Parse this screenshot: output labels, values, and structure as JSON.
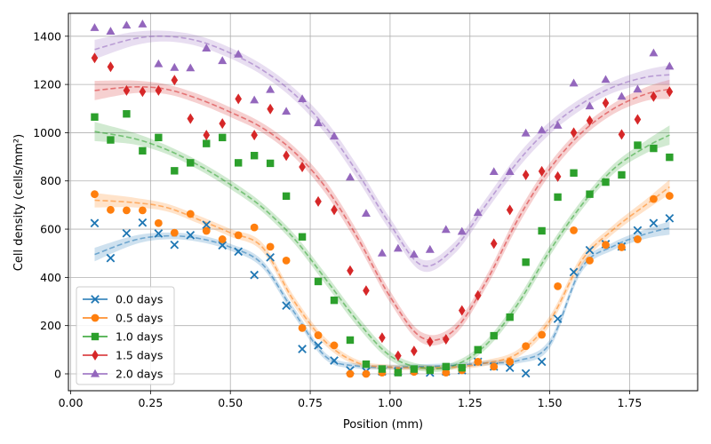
{
  "chart_data": {
    "type": "scatter",
    "title": "",
    "xlabel": "Position (mm)",
    "ylabel": "Cell density (cells/mm²)",
    "xlim": [
      -0.007,
      1.963
    ],
    "ylim": [
      -70,
      1495
    ],
    "xticks": [
      0,
      0.25,
      0.5,
      0.75,
      1.0,
      1.25,
      1.5,
      1.75
    ],
    "xtick_labels": [
      "0.00",
      "0.25",
      "0.50",
      "0.75",
      "1.00",
      "1.25",
      "1.50",
      "1.75"
    ],
    "yticks": [
      0,
      200,
      400,
      600,
      800,
      1000,
      1200,
      1400
    ],
    "ytick_labels": [
      "0",
      "200",
      "400",
      "600",
      "800",
      "1000",
      "1200",
      "1400"
    ],
    "grid": true,
    "legend_position": "lower-left",
    "x": [
      0.075,
      0.125,
      0.175,
      0.225,
      0.275,
      0.325,
      0.375,
      0.425,
      0.475,
      0.525,
      0.575,
      0.625,
      0.675,
      0.725,
      0.775,
      0.825,
      0.875,
      0.925,
      0.975,
      1.025,
      1.075,
      1.125,
      1.175,
      1.225,
      1.275,
      1.325,
      1.375,
      1.425,
      1.475,
      1.525,
      1.575,
      1.625,
      1.675,
      1.725,
      1.775,
      1.825,
      1.875
    ],
    "series": [
      {
        "name": "0.0 days",
        "color": "#1f77b4",
        "marker": "x",
        "values": [
          625,
          480,
          583,
          627,
          582,
          535,
          575,
          618,
          533,
          507,
          410,
          483,
          283,
          103,
          118,
          55,
          15,
          10,
          10,
          10,
          15,
          5,
          10,
          15,
          50,
          30,
          25,
          2,
          50,
          228,
          422,
          513,
          538,
          528,
          595,
          625,
          645
        ],
        "fit_x": [
          0.075,
          0.2,
          0.3,
          0.4,
          0.5,
          0.6,
          0.7,
          0.8,
          0.9,
          1.0,
          1.1,
          1.2,
          1.3,
          1.4,
          1.5,
          1.6,
          1.7,
          1.8,
          1.875
        ],
        "fit": [
          495,
          555,
          572,
          562,
          525,
          455,
          255,
          70,
          32,
          28,
          30,
          35,
          45,
          55,
          125,
          440,
          530,
          580,
          605
        ],
        "band": [
          28,
          18,
          14,
          14,
          14,
          16,
          18,
          14,
          10,
          10,
          10,
          10,
          10,
          12,
          18,
          18,
          16,
          20,
          28
        ]
      },
      {
        "name": "0.5 days",
        "color": "#ff7f0e",
        "marker": "o",
        "values": [
          745,
          680,
          678,
          678,
          625,
          585,
          663,
          593,
          558,
          575,
          607,
          527,
          470,
          190,
          160,
          118,
          0,
          0,
          5,
          8,
          8,
          15,
          5,
          15,
          50,
          30,
          50,
          115,
          162,
          363,
          595,
          470,
          535,
          525,
          558,
          725,
          738
        ],
        "fit_x": [
          0.075,
          0.2,
          0.3,
          0.4,
          0.5,
          0.6,
          0.7,
          0.8,
          0.9,
          1.0,
          1.1,
          1.2,
          1.3,
          1.4,
          1.5,
          1.6,
          1.7,
          1.8,
          1.875
        ],
        "fit": [
          720,
          710,
          690,
          640,
          585,
          525,
          300,
          130,
          45,
          28,
          25,
          28,
          45,
          85,
          220,
          470,
          600,
          700,
          775
        ],
        "band": [
          30,
          20,
          16,
          16,
          16,
          18,
          20,
          16,
          12,
          10,
          10,
          10,
          12,
          16,
          20,
          20,
          18,
          22,
          30
        ]
      },
      {
        "name": "1.0 days",
        "color": "#2ca02c",
        "marker": "s",
        "values": [
          1065,
          970,
          1078,
          925,
          980,
          842,
          875,
          955,
          980,
          875,
          905,
          873,
          737,
          568,
          383,
          305,
          140,
          40,
          20,
          5,
          20,
          15,
          30,
          25,
          100,
          158,
          235,
          463,
          593,
          733,
          833,
          745,
          795,
          825,
          948,
          935,
          898
        ],
        "fit_x": [
          0.075,
          0.2,
          0.3,
          0.4,
          0.5,
          0.6,
          0.7,
          0.8,
          0.9,
          1.0,
          1.1,
          1.2,
          1.3,
          1.4,
          1.5,
          1.6,
          1.7,
          1.8,
          1.875
        ],
        "fit": [
          1005,
          975,
          930,
          865,
          785,
          690,
          560,
          390,
          215,
          75,
          25,
          35,
          120,
          290,
          510,
          700,
          850,
          940,
          990
        ],
        "band": [
          40,
          24,
          18,
          18,
          18,
          18,
          20,
          22,
          22,
          18,
          14,
          14,
          18,
          22,
          22,
          20,
          20,
          26,
          40
        ]
      },
      {
        "name": "1.5 days",
        "color": "#d62728",
        "marker": "d",
        "values": [
          1310,
          1273,
          1175,
          1170,
          1175,
          1218,
          1058,
          990,
          1038,
          1140,
          990,
          1098,
          905,
          858,
          715,
          680,
          428,
          345,
          150,
          75,
          95,
          133,
          143,
          263,
          325,
          540,
          680,
          825,
          840,
          818,
          1000,
          1050,
          1123,
          993,
          1055,
          1150,
          1170
        ],
        "fit_x": [
          0.075,
          0.2,
          0.3,
          0.4,
          0.5,
          0.6,
          0.7,
          0.8,
          0.9,
          1.0,
          1.1,
          1.2,
          1.3,
          1.4,
          1.5,
          1.6,
          1.7,
          1.8,
          1.875
        ],
        "fit": [
          1175,
          1190,
          1180,
          1140,
          1085,
          1020,
          920,
          770,
          560,
          320,
          150,
          180,
          380,
          640,
          850,
          1000,
          1100,
          1160,
          1180
        ],
        "band": [
          40,
          26,
          20,
          20,
          20,
          20,
          22,
          26,
          26,
          24,
          22,
          22,
          24,
          26,
          24,
          22,
          22,
          28,
          40
        ]
      },
      {
        "name": "2.0 days",
        "color": "#9467bd",
        "marker": "^",
        "values": [
          1435,
          1420,
          1445,
          1450,
          1285,
          1270,
          1268,
          1350,
          1298,
          1325,
          1135,
          1178,
          1088,
          1140,
          1040,
          985,
          815,
          665,
          500,
          520,
          495,
          515,
          598,
          590,
          668,
          838,
          838,
          998,
          1010,
          1030,
          1205,
          1110,
          1220,
          1150,
          1180,
          1330,
          1275
        ],
        "fit_x": [
          0.075,
          0.2,
          0.3,
          0.4,
          0.5,
          0.6,
          0.7,
          0.8,
          0.9,
          1.0,
          1.1,
          1.2,
          1.3,
          1.4,
          1.5,
          1.6,
          1.7,
          1.8,
          1.875
        ],
        "fit": [
          1345,
          1390,
          1400,
          1380,
          1330,
          1260,
          1160,
          1020,
          830,
          620,
          450,
          520,
          700,
          880,
          1020,
          1120,
          1190,
          1230,
          1240
        ],
        "band": [
          40,
          28,
          22,
          22,
          22,
          22,
          24,
          28,
          28,
          26,
          24,
          24,
          26,
          28,
          26,
          24,
          24,
          30,
          40
        ]
      }
    ]
  }
}
